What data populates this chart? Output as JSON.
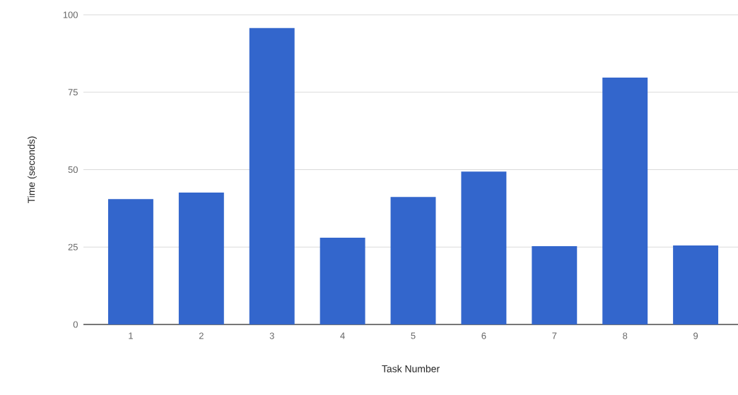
{
  "chart_data": {
    "type": "bar",
    "xlabel": "Task Number",
    "ylabel": "Time (seconds)",
    "categories": [
      "1",
      "2",
      "3",
      "4",
      "5",
      "6",
      "7",
      "8",
      "9"
    ],
    "values": [
      40.5,
      42.6,
      95.7,
      28,
      41.2,
      49.4,
      25.3,
      79.7,
      25.5
    ],
    "color": "#3366cc",
    "ylim": [
      0,
      100
    ],
    "yticks": [
      0,
      25,
      50,
      75,
      100
    ],
    "grid": "y"
  }
}
